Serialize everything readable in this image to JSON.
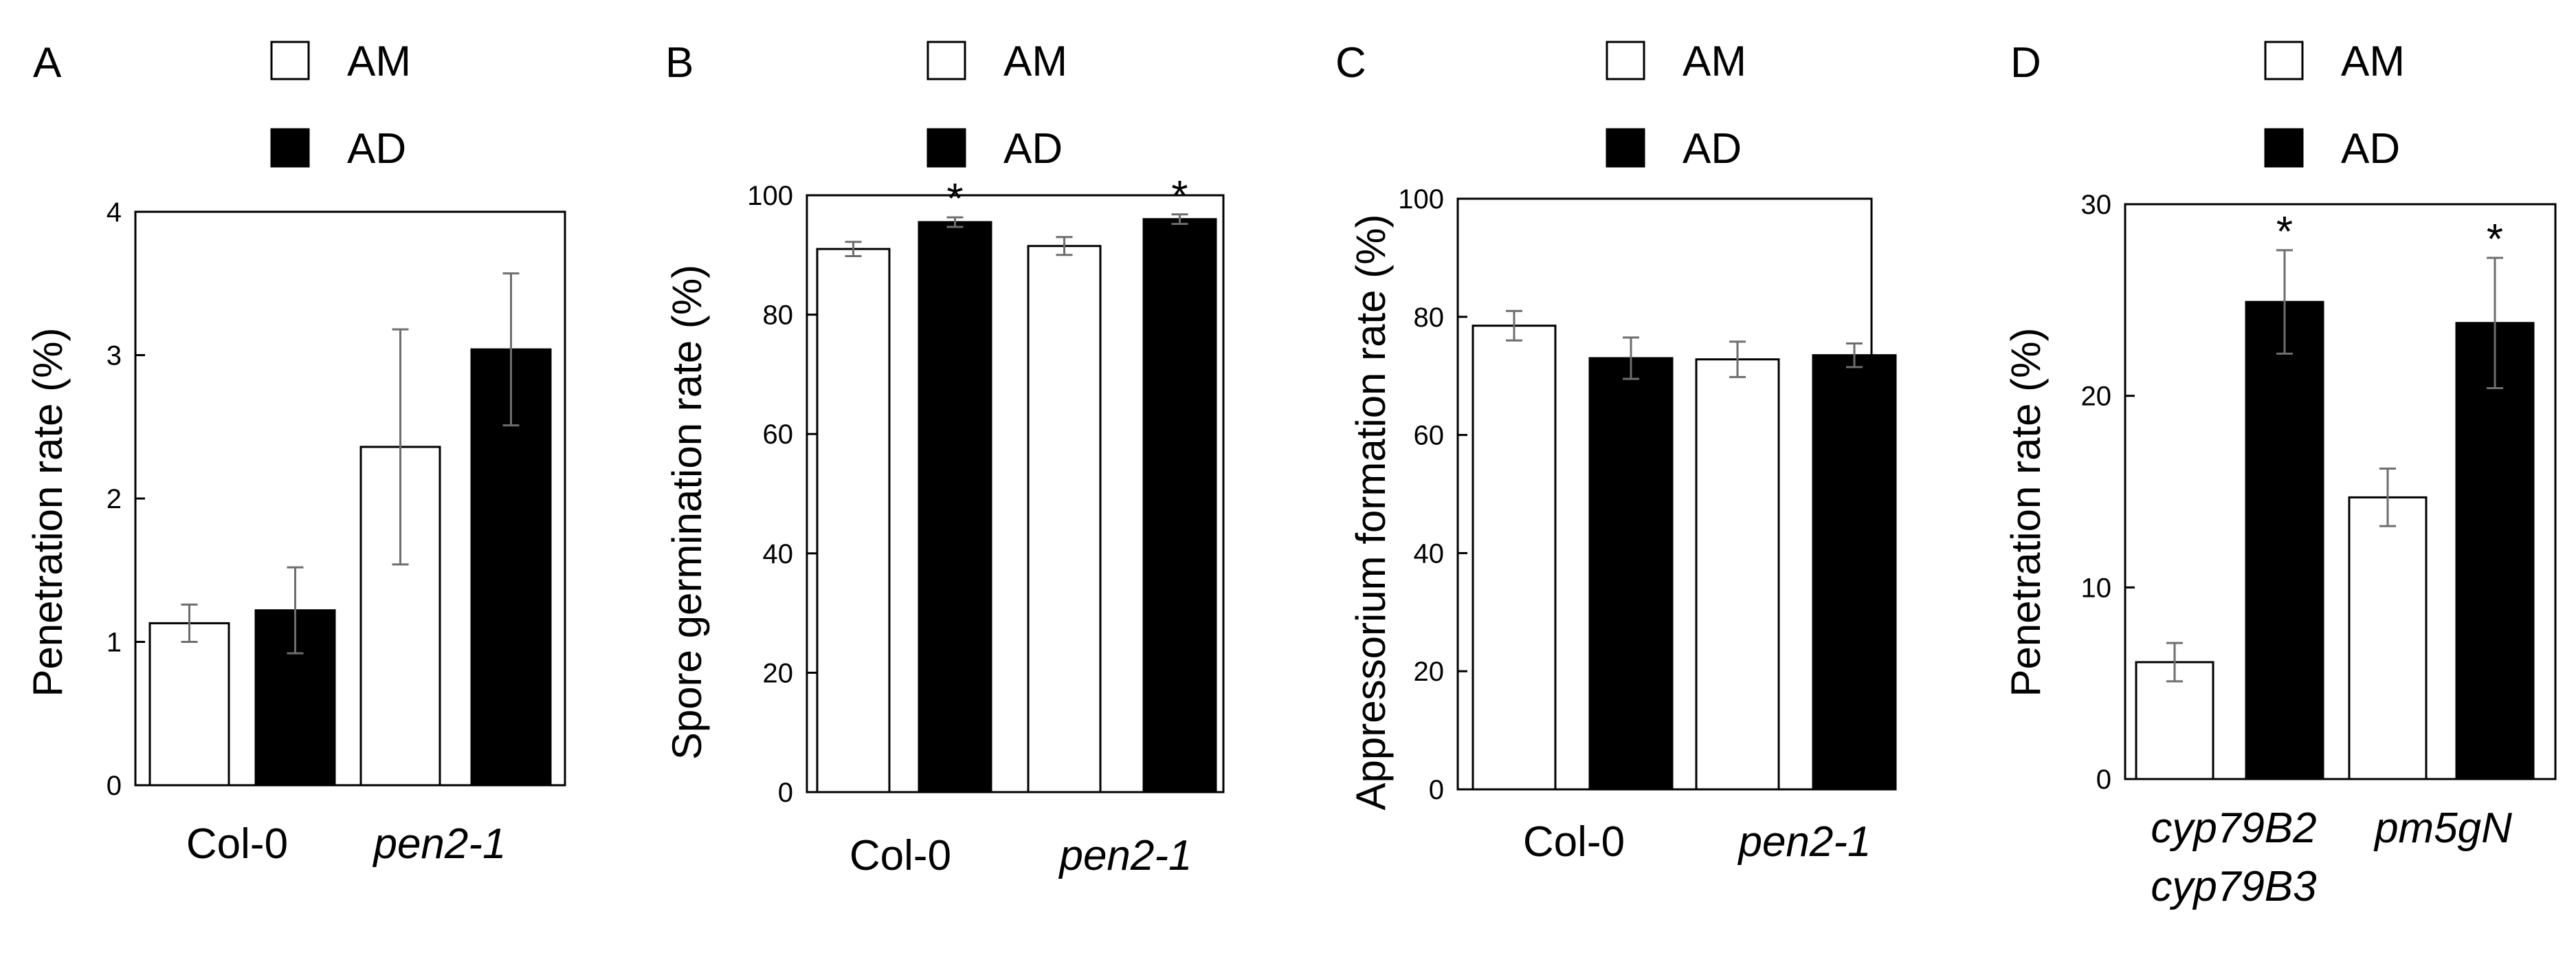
{
  "colors": {
    "AM": "#ffffff",
    "AD": "#000000",
    "axis": "#000000",
    "errorbar": "#6e6e6e"
  },
  "chart_data": [
    {
      "panel": "A",
      "type": "bar",
      "ylabel": "Penetration rate (%)",
      "ylim": [
        0,
        4
      ],
      "yticks": [
        "0",
        "1",
        "2",
        "3",
        "4"
      ],
      "categories": [
        "Col-0",
        "pen2-1"
      ],
      "category_italic": [
        false,
        true
      ],
      "legend": [
        "AM",
        "AD"
      ],
      "series": [
        {
          "name": "AM",
          "values": [
            1.13,
            2.36
          ],
          "errors": [
            0.13,
            0.82
          ],
          "significant": [
            false,
            false
          ]
        },
        {
          "name": "AD",
          "values": [
            1.22,
            3.04
          ],
          "errors": [
            0.3,
            0.53
          ],
          "significant": [
            false,
            false
          ]
        }
      ]
    },
    {
      "panel": "B",
      "type": "bar",
      "ylabel": "Spore germination rate (%)",
      "ylim": [
        0,
        100
      ],
      "yticks": [
        "0",
        "20",
        "40",
        "60",
        "80",
        "100"
      ],
      "categories": [
        "Col-0",
        "pen2-1"
      ],
      "category_italic": [
        false,
        true
      ],
      "legend": [
        "AM",
        "AD"
      ],
      "series": [
        {
          "name": "AM",
          "values": [
            91,
            91.5
          ],
          "errors": [
            1.2,
            1.5
          ],
          "significant": [
            false,
            false
          ]
        },
        {
          "name": "AD",
          "values": [
            95.5,
            96
          ],
          "errors": [
            0.8,
            0.8
          ],
          "significant": [
            true,
            true
          ]
        }
      ],
      "significance_mark": "*"
    },
    {
      "panel": "C",
      "type": "bar",
      "ylabel": "Appressorium  formation rate (%)",
      "ylim": [
        0,
        100
      ],
      "yticks": [
        "0",
        "20",
        "40",
        "60",
        "80",
        "100"
      ],
      "categories": [
        "Col-0",
        "pen2-1"
      ],
      "category_italic": [
        false,
        true
      ],
      "legend": [
        "AM",
        "AD"
      ],
      "series": [
        {
          "name": "AM",
          "values": [
            78.5,
            72.8
          ],
          "errors": [
            2.5,
            3.0
          ],
          "significant": [
            false,
            false
          ]
        },
        {
          "name": "AD",
          "values": [
            73,
            73.5
          ],
          "errors": [
            3.5,
            2.0
          ],
          "significant": [
            false,
            false
          ]
        }
      ]
    },
    {
      "panel": "D",
      "type": "bar",
      "ylabel": "Penetration rate (%)",
      "ylim": [
        0,
        30
      ],
      "yticks": [
        "0",
        "10",
        "20",
        "30"
      ],
      "categories": [
        "cyp79B2 cyp79B3",
        "pm5gN"
      ],
      "category_lines": [
        [
          "cyp79B2",
          "cyp79B3"
        ],
        [
          "pm5gN"
        ]
      ],
      "category_italic": [
        true,
        true
      ],
      "legend": [
        "AM",
        "AD"
      ],
      "series": [
        {
          "name": "AM",
          "values": [
            6.1,
            14.7
          ],
          "errors": [
            1.0,
            1.5
          ],
          "significant": [
            false,
            false
          ]
        },
        {
          "name": "AD",
          "values": [
            24.9,
            23.8
          ],
          "errors": [
            2.7,
            3.4
          ],
          "significant": [
            true,
            true
          ]
        }
      ],
      "significance_mark": "*"
    }
  ]
}
